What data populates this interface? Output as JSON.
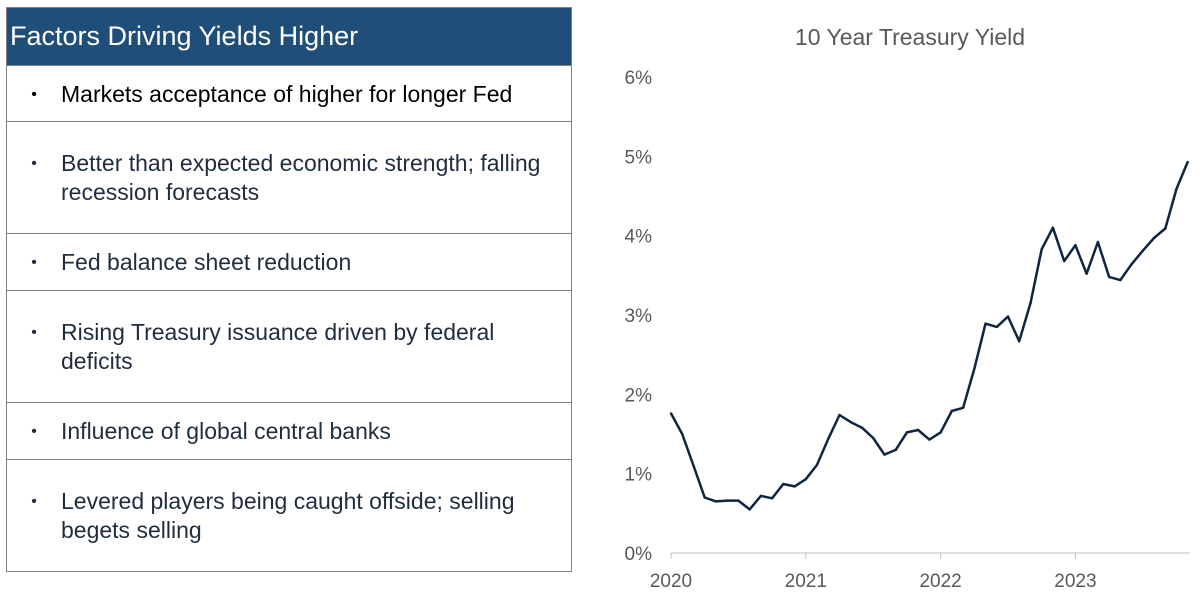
{
  "table": {
    "header": "Factors Driving Yields Higher",
    "bullet": "•",
    "items": [
      {
        "text": "Markets acceptance of higher for longer Fed"
      },
      {
        "text": "Better than expected economic strength; falling recession forecasts"
      },
      {
        "text": "Fed balance sheet reduction"
      },
      {
        "text": "Rising Treasury issuance driven by federal deficits"
      },
      {
        "text": "Influence of global central banks"
      },
      {
        "text": "Levered players being caught offside; selling begets selling"
      }
    ]
  },
  "colors": {
    "header_bg": "#1f4e79",
    "line": "#0f2540",
    "text": "#1f2d3d",
    "axis_text": "#595959"
  },
  "chart_data": {
    "type": "line",
    "title": "10 Year Treasury Yield",
    "xlabel": "",
    "ylabel": "",
    "y_ticks": [
      "0%",
      "1%",
      "2%",
      "3%",
      "4%",
      "5%",
      "6%"
    ],
    "x_ticks": [
      "2020",
      "2021",
      "2022",
      "2023"
    ],
    "xlim": [
      2020,
      2023.85
    ],
    "ylim": [
      0,
      6
    ],
    "series": [
      {
        "name": "10 Year Treasury Yield",
        "x": [
          2020.0,
          2020.083,
          2020.167,
          2020.25,
          2020.333,
          2020.417,
          2020.5,
          2020.583,
          2020.667,
          2020.75,
          2020.833,
          2020.917,
          2021.0,
          2021.083,
          2021.167,
          2021.25,
          2021.333,
          2021.417,
          2021.5,
          2021.583,
          2021.667,
          2021.75,
          2021.833,
          2021.917,
          2022.0,
          2022.083,
          2022.167,
          2022.25,
          2022.333,
          2022.417,
          2022.5,
          2022.583,
          2022.667,
          2022.75,
          2022.833,
          2022.917,
          2023.0,
          2023.083,
          2023.167,
          2023.25,
          2023.333,
          2023.417,
          2023.5,
          2023.583,
          2023.667,
          2023.75,
          2023.833
        ],
        "values": [
          1.76,
          1.5,
          1.1,
          0.7,
          0.65,
          0.66,
          0.66,
          0.55,
          0.72,
          0.69,
          0.87,
          0.84,
          0.93,
          1.11,
          1.44,
          1.74,
          1.65,
          1.58,
          1.45,
          1.24,
          1.3,
          1.52,
          1.55,
          1.43,
          1.52,
          1.79,
          1.83,
          2.32,
          2.89,
          2.85,
          2.98,
          2.67,
          3.15,
          3.83,
          4.1,
          3.68,
          3.88,
          3.52,
          3.92,
          3.48,
          3.44,
          3.64,
          3.81,
          3.97,
          4.09,
          4.59,
          4.93
        ]
      }
    ]
  }
}
